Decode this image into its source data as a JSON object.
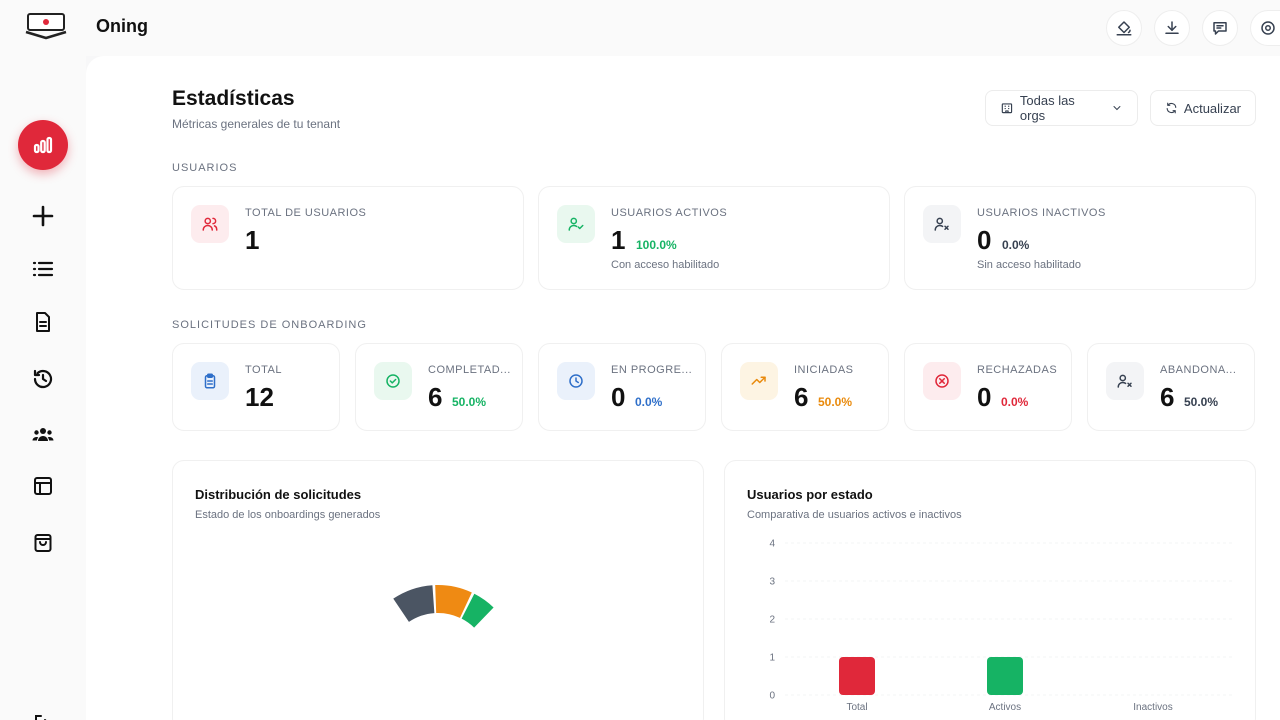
{
  "app": {
    "title": "Oning"
  },
  "top_actions": [
    "paint-bucket-icon",
    "download-icon",
    "message-icon",
    "help-icon"
  ],
  "sidebar": {
    "items": [
      {
        "icon": "bar-chart-icon",
        "active": true
      },
      {
        "icon": "plus-icon"
      },
      {
        "icon": "list-icon"
      },
      {
        "icon": "document-icon"
      },
      {
        "icon": "history-icon"
      },
      {
        "icon": "users-group-icon"
      },
      {
        "icon": "layout-icon"
      },
      {
        "icon": "shopping-bag-icon"
      },
      {
        "icon": "logout-icon"
      }
    ]
  },
  "header": {
    "title": "Estadísticas",
    "subtitle": "Métricas generales de tu tenant",
    "org_filter": "Todas las orgs",
    "refresh": "Actualizar"
  },
  "users_section": {
    "label": "USUARIOS",
    "cards": [
      {
        "label": "TOTAL DE USUARIOS",
        "value": "1",
        "pct": "",
        "hint": "",
        "icon": "users-icon",
        "color": "#e0283a",
        "bg": "#fdecee"
      },
      {
        "label": "USUARIOS ACTIVOS",
        "value": "1",
        "pct": "100.0%",
        "hint": "Con acceso habilitado",
        "icon": "user-check-icon",
        "color": "#16b364",
        "bg": "#e9f8ef"
      },
      {
        "label": "USUARIOS INACTIVOS",
        "value": "0",
        "pct": "0.0%",
        "hint": "Sin acceso habilitado",
        "icon": "user-x-icon",
        "color": "#374151",
        "bg": "#f3f4f6"
      }
    ]
  },
  "onboarding_section": {
    "label": "SOLICITUDES DE ONBOARDING",
    "cards": [
      {
        "label": "TOTAL",
        "value": "12",
        "pct": "",
        "icon": "clipboard-icon",
        "color": "#2f6fc9",
        "bg": "#eaf1fb"
      },
      {
        "label": "COMPLETAD...",
        "value": "6",
        "pct": "50.0%",
        "icon": "check-circle-icon",
        "color": "#16b364",
        "bg": "#e9f8ef"
      },
      {
        "label": "EN PROGRE...",
        "value": "0",
        "pct": "0.0%",
        "icon": "clock-icon",
        "color": "#2f6fc9",
        "bg": "#eaf1fb"
      },
      {
        "label": "INICIADAS",
        "value": "6",
        "pct": "50.0%",
        "icon": "trending-up-icon",
        "color": "#e98a0c",
        "bg": "#fdf4e3"
      },
      {
        "label": "RECHAZADAS",
        "value": "0",
        "pct": "0.0%",
        "icon": "x-circle-icon",
        "color": "#e0283a",
        "bg": "#fdecee"
      },
      {
        "label": "ABANDONA...",
        "value": "6",
        "pct": "50.0%",
        "icon": "user-x-icon",
        "color": "#374151",
        "bg": "#f3f4f6"
      }
    ]
  },
  "charts": {
    "distribution": {
      "title": "Distribución de solicitudes",
      "subtitle": "Estado de los onboardings generados"
    },
    "users_by_state": {
      "title": "Usuarios por estado",
      "subtitle": "Comparativa de usuarios activos e inactivos"
    }
  },
  "chart_data": [
    {
      "type": "pie",
      "title": "Distribución de solicitudes",
      "subtitle": "Estado de los onboardings generados",
      "note": "partially rendered donut (animation in progress)",
      "slices": [
        {
          "color": "#4b5563"
        },
        {
          "color": "#ef8a13"
        },
        {
          "color": "#16b364"
        }
      ]
    },
    {
      "type": "bar",
      "title": "Usuarios por estado",
      "subtitle": "Comparativa de usuarios activos e inactivos",
      "categories": [
        "Total",
        "Activos",
        "Inactivos"
      ],
      "values": [
        1,
        1,
        0
      ],
      "colors": [
        "#e0283a",
        "#16b364",
        "#9ca3af"
      ],
      "yticks": [
        "0",
        "1",
        "2",
        "3",
        "4"
      ],
      "ylim": [
        0,
        4
      ]
    }
  ]
}
